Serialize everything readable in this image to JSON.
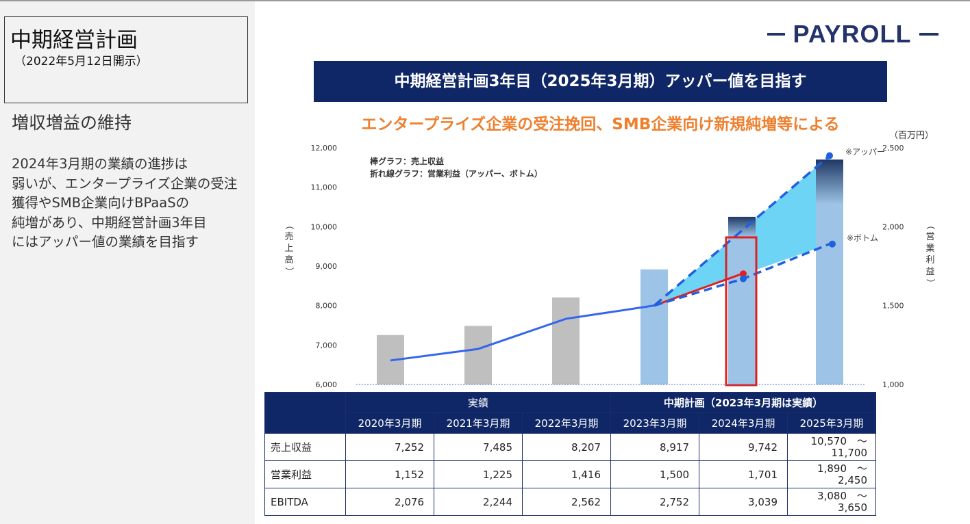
{
  "sidebar": {
    "title": "中期経営計画",
    "subtitle": "（2022年5月12日開示）",
    "heading": "増収増益の維持",
    "body_lines": [
      "2024年3月期の業績の進捗は",
      "弱いが、エンタープライズ企業の受注",
      "獲得やSMB企業向けBPaaSの",
      "純増があり、中期経営計画3年目",
      "にはアッパー値の業績を目指す"
    ]
  },
  "logo": {
    "text": "PAYROLL",
    "color": "#24336b"
  },
  "banner": {
    "text": "中期経営計画3年目（2025年3月期）アッパー値を目指す",
    "bg": "#0f2766"
  },
  "subtitle": {
    "text": "エンタープライズ企業の受注挽回、SMB企業向け新規純増等による",
    "color": "#ee7f2d"
  },
  "chart_data": {
    "type": "bar",
    "unit_label": "（百万円）",
    "legend_lines": [
      "棒グラフ：売上収益",
      "折れ線グラフ：営業利益（アッパー、ボトム）"
    ],
    "left_axis": {
      "label": "（売上高）",
      "ticks": [
        "12,000",
        "11,000",
        "10,000",
        "9,000",
        "8,000",
        "7,000",
        "6,000"
      ],
      "range": [
        6000,
        12000
      ]
    },
    "right_axis": {
      "label": "（営業利益）",
      "ticks": [
        "2,500",
        "2,000",
        "1,500",
        "1,000"
      ],
      "range": [
        1000,
        2500
      ]
    },
    "categories": [
      "2020年3月期",
      "2021年3月期",
      "2022年3月期",
      "2023年3月期",
      "2024年3月期",
      "2025年3月期"
    ],
    "revenue": [
      7252,
      7485,
      8207,
      8917,
      9742,
      10570
    ],
    "revenue_target": [
      null,
      null,
      null,
      null,
      10250,
      11700
    ],
    "operating_profit": [
      1152,
      1225,
      1416,
      1500
    ],
    "op_actual_2024": 1701,
    "op_upper": {
      "name": "※アッパー",
      "values": [
        null,
        null,
        null,
        1500,
        null,
        2450
      ]
    },
    "op_bottom": {
      "name": "※ボトム",
      "values": [
        null,
        null,
        null,
        1500,
        1670,
        1890
      ]
    },
    "colors": {
      "actual_bar": "#bfbfbf",
      "plan_bar": "#9dc3e6",
      "target_bar": "#1f3864",
      "line": "#3366ee",
      "red_line": "#e02020",
      "band": "#5ecff5",
      "highlight": "#e02020"
    }
  },
  "table": {
    "group_headers": {
      "actual": "実績",
      "plan": "中期計画（2023年3月期は実績）"
    },
    "years": [
      "2020年3月期",
      "2021年3月期",
      "2022年3月期",
      "2023年3月期",
      "2024年3月期",
      "2025年3月期"
    ],
    "rows": [
      {
        "label": "売上収益",
        "values": [
          "7,252",
          "7,485",
          "8,207",
          "8,917",
          "9,742"
        ],
        "range": [
          "10,570　～",
          "11,700"
        ]
      },
      {
        "label": "営業利益",
        "values": [
          "1,152",
          "1,225",
          "1,416",
          "1,500",
          "1,701"
        ],
        "range": [
          "1,890　～",
          "2,450"
        ]
      },
      {
        "label": "EBITDA",
        "values": [
          "2,076",
          "2,244",
          "2,562",
          "2,752",
          "3,039"
        ],
        "range": [
          "3,080　～",
          "3,650"
        ]
      }
    ]
  }
}
